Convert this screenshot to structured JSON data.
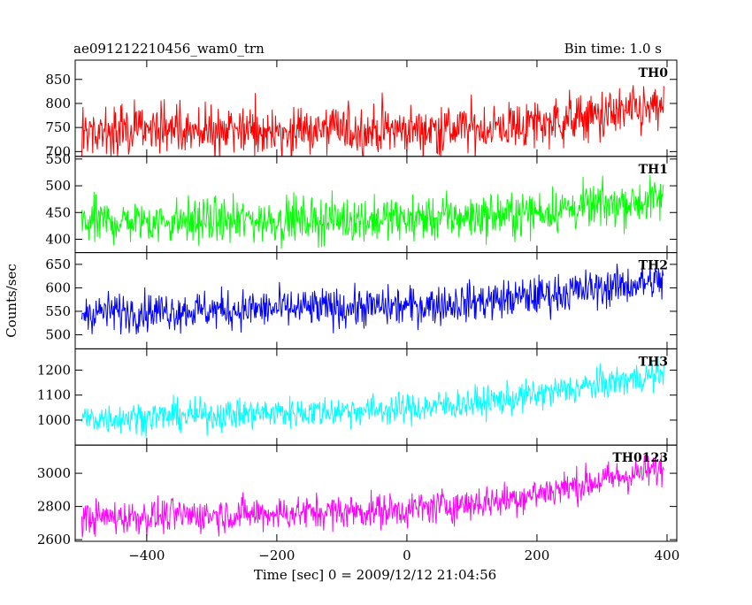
{
  "header": {
    "title": "ae091212210456_wam0_trn",
    "bin_time": "Bin time: 1.0 s"
  },
  "axes": {
    "ylabel": "Counts/sec",
    "xlabel": "Time [sec] 0 = 2009/12/12 21:04:56"
  },
  "chart_data": {
    "type": "line",
    "title": "ae091212210456_wam0_trn",
    "xlabel": "Time [sec] 0 = 2009/12/12 21:04:56",
    "ylabel": "Counts/sec",
    "xlim": [
      -510,
      415
    ],
    "x_start": -500,
    "x_end": 395,
    "x_step": 1,
    "x_ticks": [
      -400,
      -200,
      0,
      200,
      400
    ],
    "grid": false,
    "series": [
      {
        "name": "TH0",
        "color": "#ff0000",
        "ylim": [
          690,
          890
        ],
        "y_ticks": [
          700,
          750,
          800,
          850
        ],
        "trend": [
          [
            -500,
            740
          ],
          [
            0,
            745
          ],
          [
            150,
            750
          ],
          [
            395,
            790
          ]
        ],
        "noise": 38
      },
      {
        "name": "TH1",
        "color": "#00ff00",
        "ylim": [
          375,
          555
        ],
        "y_ticks": [
          400,
          450,
          500,
          550
        ],
        "trend": [
          [
            -500,
            432
          ],
          [
            0,
            438
          ],
          [
            150,
            445
          ],
          [
            395,
            475
          ]
        ],
        "noise": 30
      },
      {
        "name": "TH2",
        "color": "#0000ff",
        "ylim": [
          470,
          675
        ],
        "y_ticks": [
          500,
          550,
          600,
          650
        ],
        "trend": [
          [
            -500,
            548
          ],
          [
            0,
            560
          ],
          [
            150,
            575
          ],
          [
            395,
            615
          ]
        ],
        "noise": 30
      },
      {
        "name": "TH3",
        "color": "#00ffff",
        "ylim": [
          900,
          1285
        ],
        "y_ticks": [
          1000,
          1100,
          1200
        ],
        "trend": [
          [
            -500,
            1005
          ],
          [
            0,
            1045
          ],
          [
            150,
            1080
          ],
          [
            395,
            1185
          ]
        ],
        "noise": 45
      },
      {
        "name": "TH0123",
        "color": "#ff00ff",
        "ylim": [
          2590,
          3170
        ],
        "y_ticks": [
          2600,
          2800,
          3000
        ],
        "trend": [
          [
            -500,
            2730
          ],
          [
            0,
            2780
          ],
          [
            150,
            2840
          ],
          [
            395,
            3030
          ]
        ],
        "noise": 75
      }
    ]
  }
}
